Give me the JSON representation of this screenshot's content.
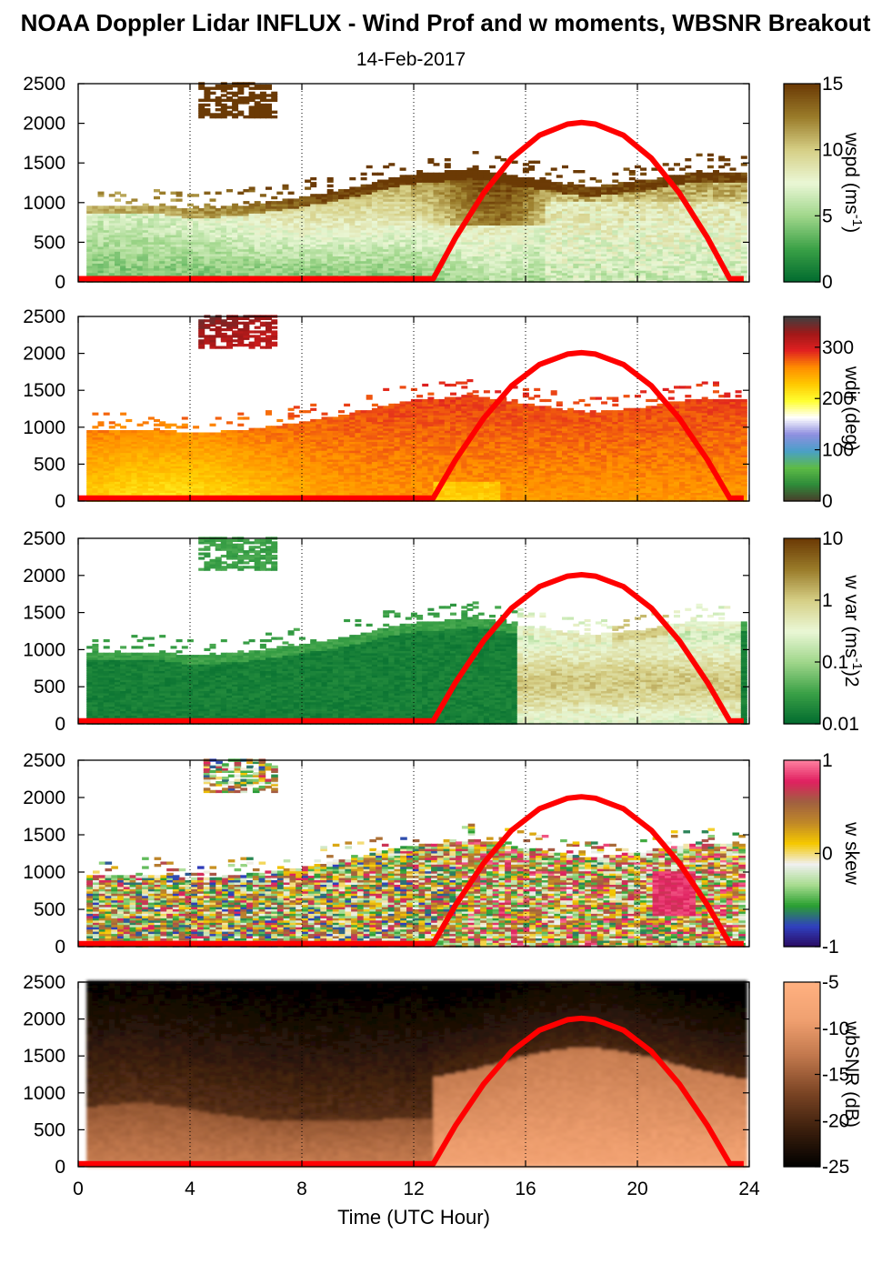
{
  "title": "NOAA Doppler Lidar INFLUX - Wind Prof and w moments, WBSNR Breakout",
  "subtitle": "14-Feb-2017",
  "chart_data": {
    "type": "heatmap",
    "xlabel": "Time (UTC Hour)",
    "xlim": [
      0,
      24
    ],
    "xticks": [
      "0",
      "4",
      "8",
      "12",
      "16",
      "20",
      "24"
    ],
    "ylim": [
      0,
      2500
    ],
    "yticks": [
      "0",
      "500",
      "1000",
      "1500",
      "2000",
      "2500"
    ],
    "solar_curve": {
      "color": "#ff0000",
      "x": [
        0,
        12.7,
        13.5,
        14.5,
        15.5,
        16.5,
        17.5,
        18,
        18.5,
        19.5,
        20.5,
        21.5,
        22.5,
        23.3,
        23.8
      ],
      "y": [
        40,
        40,
        560,
        1120,
        1560,
        1850,
        1990,
        2010,
        1990,
        1850,
        1560,
        1120,
        560,
        40,
        40
      ]
    },
    "panels": [
      {
        "id": "wspd",
        "colorbar_label": "wspd (ms-1)",
        "colorbar_label_main": "wspd (ms",
        "colorbar_label_sup": "-1",
        "colorbar_label_end": ")",
        "colorbar_ticks": [
          "0",
          "5",
          "10",
          "15"
        ],
        "colorbar_range": [
          0,
          15
        ],
        "colormap": [
          "#006a2e",
          "#3aa046",
          "#9fd68a",
          "#eaf7d6",
          "#d6cf86",
          "#9a7c2a",
          "#6b3a05"
        ]
      },
      {
        "id": "wdir",
        "colorbar_label": "wdir (deg)",
        "colorbar_label_main": "wdir (deg)",
        "colorbar_label_sup": "",
        "colorbar_label_end": "",
        "colorbar_ticks": [
          "0",
          "100",
          "200",
          "300"
        ],
        "colorbar_range": [
          0,
          360
        ],
        "colormap": [
          "#4a3a2a",
          "#2e8b3a",
          "#5dbb46",
          "#4aa0c8",
          "#8f8fe0",
          "#ffffff",
          "#ffff30",
          "#ffc800",
          "#ff8c00",
          "#e02020",
          "#a01818",
          "#404040"
        ]
      },
      {
        "id": "wvar",
        "colorbar_label": "w var (ms-1)2",
        "colorbar_label_main": "w var (ms",
        "colorbar_label_sup": "-1",
        "colorbar_label_end": ")2",
        "colorbar_ticks": [
          "0.01",
          "0.1",
          "1",
          "10"
        ],
        "colorbar_range": [
          0.01,
          10
        ],
        "colorbar_scale": "log",
        "colormap": [
          "#006a2e",
          "#3aa046",
          "#9fd68a",
          "#eaf7d6",
          "#d6cf86",
          "#9a7c2a",
          "#6b3a05"
        ]
      },
      {
        "id": "wskew",
        "colorbar_label": "w skew",
        "colorbar_label_main": "w skew",
        "colorbar_label_sup": "",
        "colorbar_label_end": "",
        "colorbar_ticks": [
          "-1",
          "0",
          "1"
        ],
        "colorbar_range": [
          -1,
          1
        ],
        "colormap": [
          "#2a0a60",
          "#3040c0",
          "#2aa030",
          "#a8dc90",
          "#f0f0f0",
          "#f5c800",
          "#c08828",
          "#a06040",
          "#e02060",
          "#ff80a0"
        ]
      },
      {
        "id": "wbsnr",
        "colorbar_label": "wbSNR (dB)",
        "colorbar_label_main": "wbSNR (dB)",
        "colorbar_label_sup": "",
        "colorbar_label_end": "",
        "colorbar_ticks": [
          "-25",
          "-20",
          "-15",
          "-10",
          "-5"
        ],
        "colorbar_range": [
          -25,
          -5
        ],
        "colormap": [
          "#000000",
          "#3a1e0c",
          "#7a4424",
          "#c0774c",
          "#f0a070",
          "#ffb080"
        ]
      }
    ]
  }
}
